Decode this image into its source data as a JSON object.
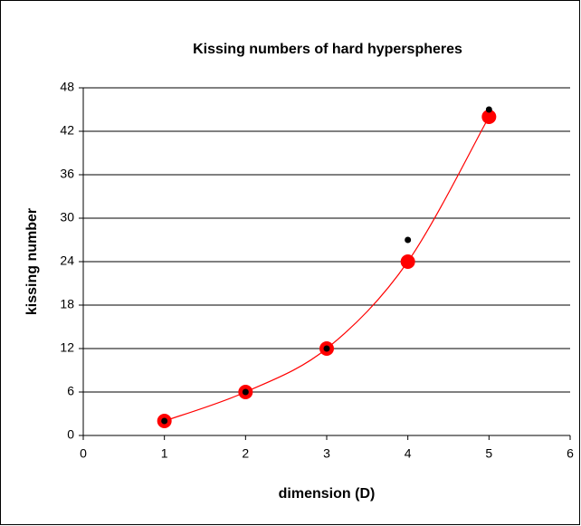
{
  "chart_data": {
    "type": "scatter",
    "title": "Kissing numbers of hard hyperspheres",
    "x_label": "dimension (D)",
    "y_label": "kissing number",
    "x": [
      1,
      2,
      3,
      4,
      5
    ],
    "series": [
      {
        "color": "#ff0000",
        "values": [
          2,
          6,
          12,
          24,
          44
        ],
        "marker_size": 8,
        "line": true
      },
      {
        "color": "#000000",
        "values": [
          2,
          6,
          12,
          27,
          45
        ],
        "marker_size": 3.5,
        "line": false
      }
    ],
    "xlim": [
      0,
      6
    ],
    "xticks": [
      0,
      1,
      2,
      3,
      4,
      5,
      6
    ],
    "ylim": [
      0,
      48
    ],
    "yticks": [
      0,
      6,
      12,
      18,
      24,
      30,
      36,
      42,
      48
    ],
    "grid": true
  }
}
